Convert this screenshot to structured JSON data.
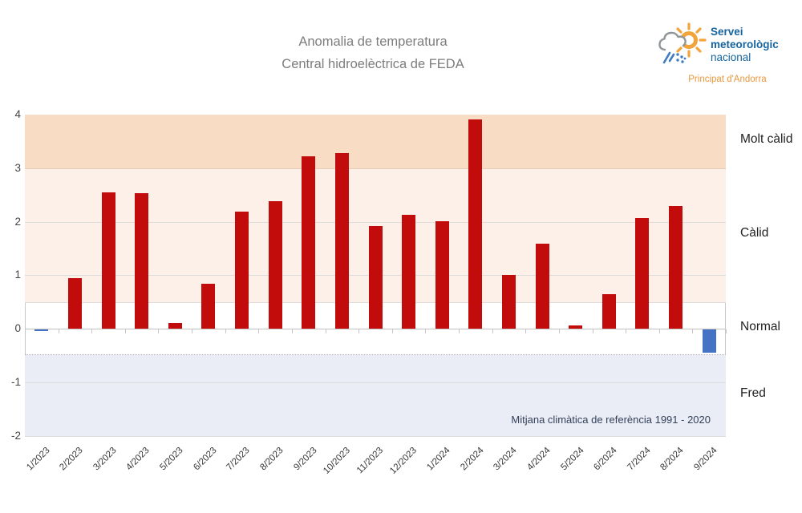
{
  "title": {
    "line1": "Anomalia de temperatura",
    "line2": "Central hidroelèctrica de FEDA"
  },
  "logo": {
    "name_line1": "Servei",
    "name_line2": "meteorològic",
    "name_line3": "nacional",
    "subtitle": "Principat d'Andorra",
    "text_color": "#1565a0",
    "subtitle_color": "#e8973b",
    "sun_color": "#f2a33c",
    "cloud_color": "#919699",
    "precip_color": "#3f7cc1"
  },
  "chart_data": {
    "type": "bar",
    "categories": [
      "1/2023",
      "2/2023",
      "3/2023",
      "4/2023",
      "5/2023",
      "6/2023",
      "7/2023",
      "8/2023",
      "9/2023",
      "10/2023",
      "11/2023",
      "12/2023",
      "1/2024",
      "2/2024",
      "3/2024",
      "4/2024",
      "5/2024",
      "6/2024",
      "7/2024",
      "8/2024",
      "9/2024"
    ],
    "values": [
      -0.05,
      0.94,
      2.55,
      2.53,
      0.1,
      0.84,
      2.19,
      2.38,
      3.22,
      3.28,
      1.92,
      2.13,
      2.01,
      3.91,
      1.0,
      1.59,
      0.06,
      0.64,
      2.07,
      2.29,
      -0.45
    ],
    "title": "Anomalia de temperatura Central hidroelèctrica de FEDA",
    "xlabel": "",
    "ylabel": "",
    "ylim": [
      -2,
      4
    ],
    "yticks": [
      4,
      3,
      2,
      1,
      0,
      -1,
      -2
    ],
    "gridlines_at": [
      3,
      2,
      1,
      0.5,
      -1,
      -2
    ],
    "grid": true,
    "legend": "none",
    "bands": [
      {
        "label": "Molt càlid",
        "from": 3,
        "to": 4,
        "color": "#f8dcc3",
        "outlined": false
      },
      {
        "label": "Càlid",
        "from": 0.5,
        "to": 3,
        "color": "#fdf0e8",
        "outlined": false
      },
      {
        "label": "Normal",
        "from": -0.5,
        "to": 0.5,
        "color": "#ffffff",
        "outlined": true
      },
      {
        "label": "Fred",
        "from": -2,
        "to": -0.5,
        "color": "#eaedf5",
        "outlined": false
      }
    ],
    "bar_color_positive": "#c20b0b",
    "bar_color_negative": "#4472c4",
    "annotation": "Mitjana climàtica de referència 1991 - 2020"
  }
}
